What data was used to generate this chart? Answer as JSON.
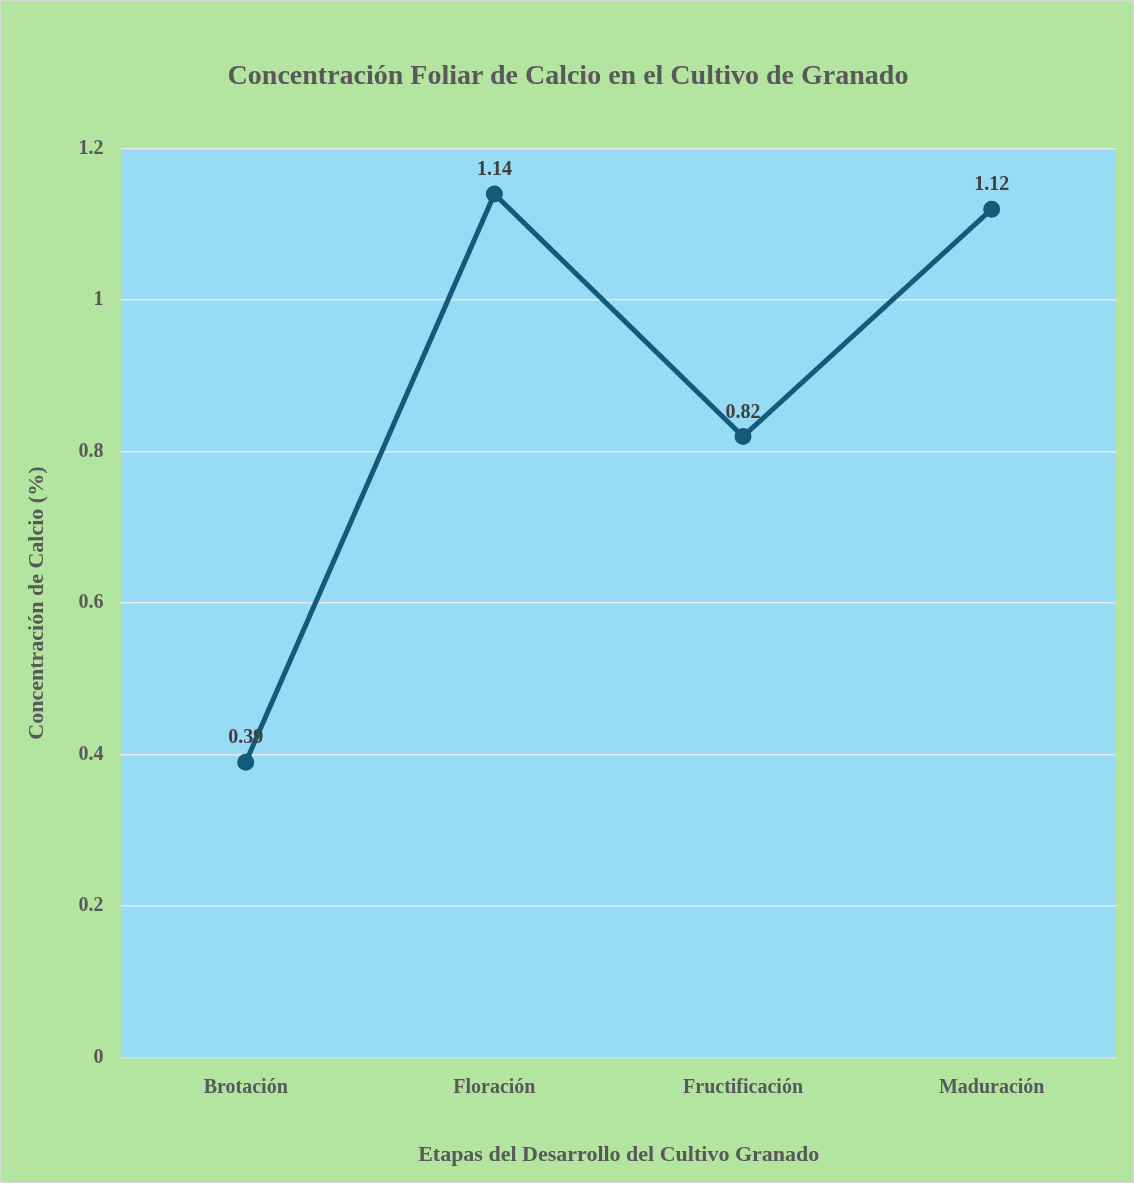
{
  "chart_data": {
    "type": "line",
    "title": "Concentración Foliar de Calcio en el Cultivo de Granado",
    "xlabel": "Etapas del Desarrollo del Cultivo Granado",
    "ylabel": "Concentración de Calcio (%)",
    "categories": [
      "Brotación",
      "Floración",
      "Fructificación",
      "Maduración"
    ],
    "series": [
      {
        "color": "#145a7a",
        "values": [
          0.39,
          1.14,
          0.82,
          1.12
        ]
      }
    ],
    "ylim": [
      0,
      1.2
    ],
    "yticks": [
      0,
      0.2,
      0.4,
      0.6,
      0.8,
      1,
      1.2
    ],
    "grid": "y",
    "legend": false,
    "marker": "circle",
    "line_style": "solid",
    "data_labels": true
  }
}
